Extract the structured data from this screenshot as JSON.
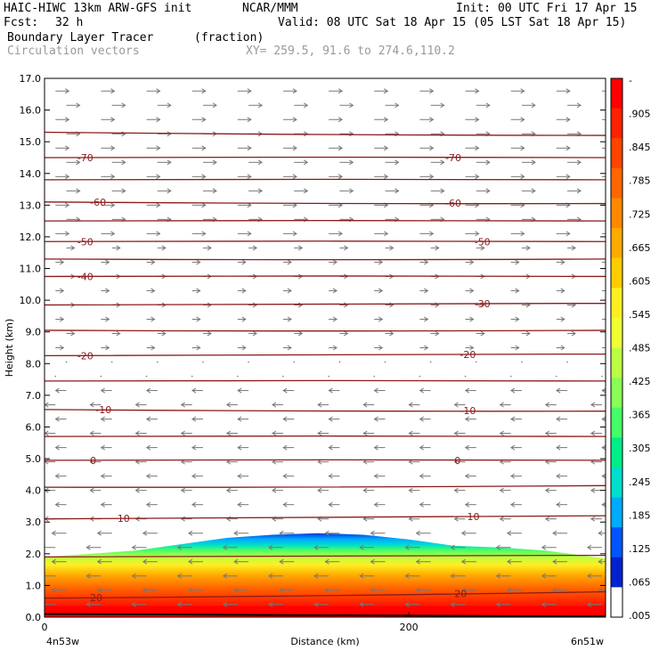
{
  "header": {
    "model": "HAIC-HIWC 13km ARW-GFS init",
    "org": "NCAR/MMM",
    "init": "Init: 00 UTC Fri 17 Apr 15",
    "fcst_label": "Fcst:",
    "fcst_value": "32 h",
    "valid": "Valid: 08 UTC Sat 18 Apr 15 (05 LST Sat 18 Apr 15)",
    "field": "Boundary Layer Tracer",
    "units": "(fraction)",
    "overlay": "Circulation vectors",
    "xy": "XY= 259.5, 91.6 to 274.6,110.2"
  },
  "chart_data": {
    "type": "heatmap",
    "xlabel": "Distance (km)",
    "ylabel": "Height (km)",
    "xlim": [
      0,
      308
    ],
    "ylim": [
      0,
      17
    ],
    "x_ticks": [
      {
        "value": 0,
        "label": "0"
      },
      {
        "value": 200,
        "label": "200"
      }
    ],
    "x_end_labels": {
      "left": "4n53w",
      "right": "6n51w"
    },
    "y_ticks": [
      "0.0",
      "1.0",
      "2.0",
      "3.0",
      "4.0",
      "5.0",
      "6.0",
      "7.0",
      "8.0",
      "9.0",
      "10.0",
      "11.0",
      "12.0",
      "13.0",
      "14.0",
      "15.0",
      "16.0",
      "17.0"
    ],
    "colorbar_labels": [
      "-",
      ".905",
      ".845",
      ".785",
      ".725",
      ".665",
      ".605",
      ".545",
      ".485",
      ".425",
      ".365",
      ".305",
      ".245",
      ".185",
      ".125",
      ".065",
      ".005"
    ],
    "colorbar_colors": [
      "#ff0000",
      "#ff2200",
      "#ff4400",
      "#ff6600",
      "#ff8800",
      "#ffaa00",
      "#ffcc00",
      "#ffee22",
      "#eeff33",
      "#bbff44",
      "#88ff55",
      "#44ff66",
      "#00ee88",
      "#00ddcc",
      "#00aaff",
      "#0055ff",
      "#0022cc",
      "#ffffff"
    ],
    "tracer_top_km": [
      {
        "x": 0,
        "top": 1.9
      },
      {
        "x": 25,
        "top": 2.0
      },
      {
        "x": 50,
        "top": 2.1
      },
      {
        "x": 75,
        "top": 2.3
      },
      {
        "x": 100,
        "top": 2.5
      },
      {
        "x": 125,
        "top": 2.6
      },
      {
        "x": 150,
        "top": 2.65
      },
      {
        "x": 175,
        "top": 2.6
      },
      {
        "x": 200,
        "top": 2.45
      },
      {
        "x": 225,
        "top": 2.25
      },
      {
        "x": 250,
        "top": 2.2
      },
      {
        "x": 275,
        "top": 2.1
      },
      {
        "x": 308,
        "top": 1.85
      }
    ],
    "contour_levels": [
      {
        "label": "20",
        "y_left": 0.6,
        "y_right": 0.8
      },
      {
        "label": "",
        "y_left": 1.9,
        "y_right": 1.95
      },
      {
        "label": "10",
        "y_left": 3.1,
        "y_right": 3.2
      },
      {
        "label": "",
        "y_left": 4.1,
        "y_right": 4.15
      },
      {
        "label": "0",
        "y_left": 4.95,
        "y_right": 4.95
      },
      {
        "label": "",
        "y_left": 5.7,
        "y_right": 5.7
      },
      {
        "label": "-10",
        "y_left": 6.55,
        "y_right": 6.5
      },
      {
        "label": "",
        "y_left": 7.45,
        "y_right": 7.45
      },
      {
        "label": "-20",
        "y_left": 8.25,
        "y_right": 8.3
      },
      {
        "label": "",
        "y_left": 9.05,
        "y_right": 9.05
      },
      {
        "label": "-30",
        "y_left": 9.85,
        "y_right": 9.9
      },
      {
        "label": "-40",
        "y_left": 10.75,
        "y_right": 10.75
      },
      {
        "label": "",
        "y_left": 11.3,
        "y_right": 11.3
      },
      {
        "label": "-50",
        "y_left": 11.85,
        "y_right": 11.85
      },
      {
        "label": "",
        "y_left": 12.5,
        "y_right": 12.5
      },
      {
        "label": "-60",
        "y_left": 13.1,
        "y_right": 13.05
      },
      {
        "label": "",
        "y_left": 13.8,
        "y_right": 13.8
      },
      {
        "label": "-70",
        "y_left": 14.5,
        "y_right": 14.5
      },
      {
        "label": "",
        "y_left": 15.3,
        "y_right": 15.2
      }
    ],
    "contour_label_positions": [
      {
        "label": "20",
        "x": 25,
        "level": 0
      },
      {
        "label": "20",
        "x": 225,
        "level": 0
      },
      {
        "label": "10",
        "x": 40,
        "level": 2
      },
      {
        "label": "10",
        "x": 232,
        "level": 2
      },
      {
        "label": "0",
        "x": 25,
        "level": 4
      },
      {
        "label": "0",
        "x": 225,
        "level": 4
      },
      {
        "label": "-10",
        "x": 28,
        "level": 6
      },
      {
        "label": "-10",
        "x": 228,
        "level": 6
      },
      {
        "label": "-20",
        "x": 18,
        "level": 8
      },
      {
        "label": "-20",
        "x": 228,
        "level": 8
      },
      {
        "label": "-30",
        "x": 236,
        "level": 10
      },
      {
        "label": "-40",
        "x": 18,
        "level": 11
      },
      {
        "label": "-50",
        "x": 18,
        "level": 13
      },
      {
        "label": "-50",
        "x": 236,
        "level": 13
      },
      {
        "label": "-60",
        "x": 25,
        "level": 15
      },
      {
        "label": "-60",
        "x": 220,
        "level": 15
      },
      {
        "label": "-70",
        "x": 18,
        "level": 17
      },
      {
        "label": "-70",
        "x": 220,
        "level": 17
      }
    ]
  }
}
